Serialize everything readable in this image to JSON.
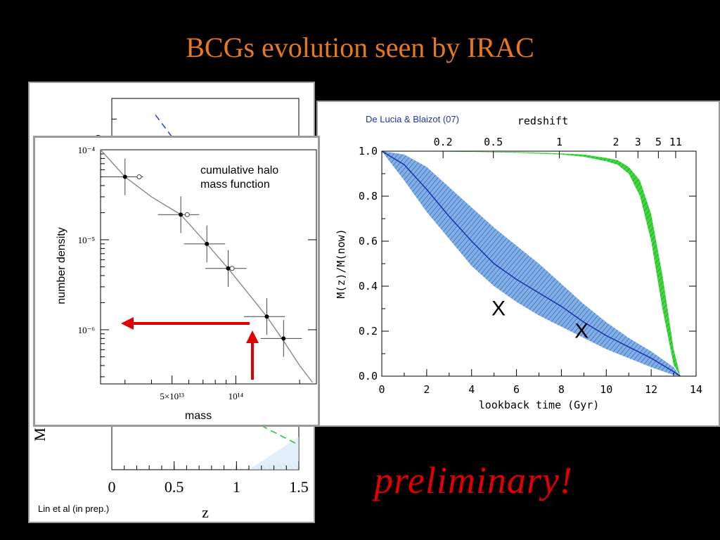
{
  "slide": {
    "title": "BCGs evolution seen by IRAC",
    "preliminary_text": "preliminary!"
  },
  "colors": {
    "title": "#e8781e",
    "preliminary": "#e00000",
    "blue_band": "#7fb0e8",
    "blue_line": "#1a2fb0",
    "green_band": "#3ed83e",
    "arrow": "#e00000"
  },
  "chart_data": [
    {
      "id": "back-chart",
      "type": "line",
      "credit": "Lin et al (in prep.)",
      "xlabel": "z",
      "ylabel": "M",
      "xlim": [
        0,
        1.5
      ],
      "x_ticks": [
        "0",
        "0.5",
        "1",
        "1.5"
      ],
      "y_ticks_visible": [
        "8"
      ],
      "series": [
        {
          "style": "dashed-blue",
          "x": [
            0.35,
            0.55
          ],
          "y": [
            8.6,
            7.8
          ]
        },
        {
          "style": "dashed-green",
          "x": [
            1.05,
            1.5
          ],
          "y": [
            1.3,
            0.6
          ]
        }
      ]
    },
    {
      "id": "halo-chart",
      "type": "scatter",
      "annotation": "cumulative halo\nmass function",
      "xlabel": "mass",
      "ylabel": "number density",
      "y_scale": "log",
      "ylim": [
        2.5e-07,
        0.0001
      ],
      "xlim": [
        23000000000000.0,
        240000000000000.0
      ],
      "y_ticks": [
        "10⁻⁴",
        "10⁻⁵",
        "10⁻⁶"
      ],
      "x_ticks": [
        "5×10¹³",
        "10¹⁴"
      ],
      "points": [
        {
          "x": 30000000000000.0,
          "y": 5e-05
        },
        {
          "x": 55000000000000.0,
          "y": 1.9e-05
        },
        {
          "x": 73000000000000.0,
          "y": 9e-06
        },
        {
          "x": 92000000000000.0,
          "y": 4.8e-06
        },
        {
          "x": 140000000000000.0,
          "y": 1.4e-06
        },
        {
          "x": 168000000000000.0,
          "y": 8e-07
        }
      ],
      "open_points": [
        {
          "x": 35000000000000.0,
          "y": 5e-05
        },
        {
          "x": 59000000000000.0,
          "y": 1.9e-05
        },
        {
          "x": 96000000000000.0,
          "y": 4.8e-06
        }
      ],
      "curve": {
        "x": [
          23000000000000.0,
          30000000000000.0,
          40000000000000.0,
          55000000000000.0,
          73000000000000.0,
          92000000000000.0,
          115000000000000.0,
          140000000000000.0,
          168000000000000.0,
          200000000000000.0,
          230000000000000.0
        ],
        "y": [
          0.0001,
          5e-05,
          3e-05,
          1.9e-05,
          9e-06,
          4.8e-06,
          2.5e-06,
          1.4e-06,
          7.5e-07,
          4e-07,
          2.6e-07
        ]
      }
    },
    {
      "id": "mass-growth-chart",
      "type": "area",
      "credit": "De Lucia & Blaizot (07)",
      "xlabel": "lookback time (Gyr)",
      "ylabel": "M(z)/M(now)",
      "top_axis_label": "redshift",
      "top_ticks": [
        "0.2",
        "0.5",
        "1",
        "2",
        "3",
        "5",
        "11"
      ],
      "xlim": [
        0,
        14
      ],
      "ylim": [
        0,
        1.0
      ],
      "x_ticks": [
        "0",
        "2",
        "4",
        "6",
        "8",
        "10",
        "12",
        "14"
      ],
      "y_ticks": [
        "0.0",
        "0.2",
        "0.4",
        "0.6",
        "0.8",
        "1.0"
      ],
      "markers": [
        {
          "label": "X",
          "x": 5.2,
          "y": 0.27
        },
        {
          "label": "X",
          "x": 8.9,
          "y": 0.17
        }
      ],
      "series": [
        {
          "style": "blue-band",
          "x": [
            0.0,
            1,
            2,
            3,
            4,
            5,
            6,
            7,
            8,
            9,
            10,
            11,
            12,
            13,
            13.3
          ],
          "median": [
            1.0,
            0.94,
            0.83,
            0.71,
            0.6,
            0.5,
            0.43,
            0.37,
            0.31,
            0.24,
            0.18,
            0.13,
            0.08,
            0.02,
            0.0
          ],
          "upper": [
            1.0,
            0.985,
            0.93,
            0.84,
            0.75,
            0.66,
            0.58,
            0.5,
            0.41,
            0.32,
            0.24,
            0.17,
            0.11,
            0.04,
            0.0
          ],
          "lower": [
            1.0,
            0.87,
            0.73,
            0.61,
            0.49,
            0.4,
            0.33,
            0.27,
            0.22,
            0.17,
            0.12,
            0.08,
            0.04,
            0.005,
            0.0
          ]
        },
        {
          "style": "green-band",
          "x": [
            0.0,
            2,
            4,
            6,
            8,
            9,
            10,
            10.5,
            11,
            11.5,
            12,
            12.5,
            13,
            13.3
          ],
          "upper": [
            1.0,
            1.0,
            0.998,
            0.996,
            0.99,
            0.985,
            0.97,
            0.96,
            0.93,
            0.87,
            0.72,
            0.45,
            0.12,
            0.0
          ],
          "lower": [
            1.0,
            0.999,
            0.997,
            0.993,
            0.985,
            0.975,
            0.955,
            0.94,
            0.9,
            0.8,
            0.6,
            0.3,
            0.05,
            0.0
          ]
        }
      ]
    }
  ]
}
